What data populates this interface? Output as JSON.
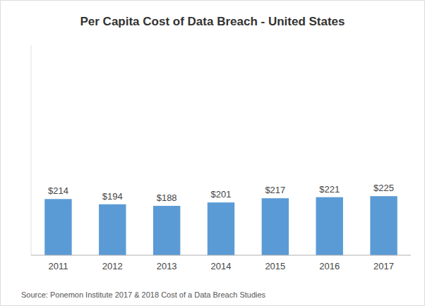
{
  "chart_data": {
    "type": "bar",
    "title": "Per Capita Cost of Data Breach - United States",
    "categories": [
      "2011",
      "2012",
      "2013",
      "2014",
      "2015",
      "2016",
      "2017"
    ],
    "values": [
      214,
      194,
      188,
      201,
      217,
      221,
      225
    ],
    "value_labels": [
      "$214",
      "$194",
      "$188",
      "$201",
      "$217",
      "$221",
      "$225"
    ],
    "color": "#5B9BD5",
    "ylim": [
      0,
      800
    ],
    "grid": false,
    "data_labels": true,
    "tick_labels": "x",
    "annotations": [
      "Source: Ponemon Institute 2017 & 2018 Cost of a Data Breach Studies"
    ]
  }
}
